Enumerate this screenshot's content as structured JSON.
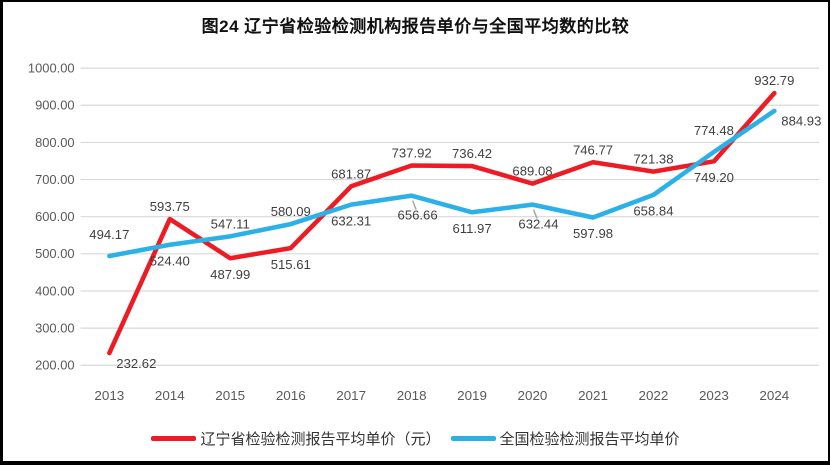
{
  "title": "图24 辽宁省检验检测机构报告单价与全国平均数的比较",
  "chart_data": {
    "type": "line",
    "title": "图24 辽宁省检验检测机构报告单价与全国平均数的比较",
    "categories": [
      "2013",
      "2014",
      "2015",
      "2016",
      "2017",
      "2018",
      "2019",
      "2020",
      "2021",
      "2022",
      "2023",
      "2024"
    ],
    "series": [
      {
        "name": "辽宁省检验检测报告平均单价（元）",
        "color": "#ed1c24",
        "values": [
          232.62,
          593.75,
          487.99,
          515.61,
          681.87,
          737.92,
          736.42,
          689.08,
          746.77,
          721.38,
          749.2,
          932.79
        ],
        "label_positions": [
          "right-below",
          "above",
          "below",
          "below",
          "above",
          "above",
          "above",
          "above",
          "above",
          "above",
          "below",
          "above"
        ]
      },
      {
        "name": "全国检验检测报告平均单价",
        "color": "#2bb1e7",
        "values": [
          494.17,
          524.4,
          547.11,
          580.09,
          632.31,
          656.66,
          611.97,
          632.44,
          597.98,
          658.84,
          774.48,
          884.93
        ],
        "label_positions": [
          "above-far",
          "below",
          "above",
          "above",
          "below",
          "below-leader",
          "below",
          "below-leader",
          "below",
          "below",
          "above-far",
          "right-below"
        ]
      }
    ],
    "ylim": [
      200,
      1000
    ],
    "y_ticks": [
      200,
      300,
      400,
      500,
      600,
      700,
      800,
      900,
      1000
    ],
    "y_tick_labels": [
      "200.00",
      "300.00",
      "400.00",
      "500.00",
      "600.00",
      "700.00",
      "800.00",
      "900.00",
      "1000.00"
    ],
    "grid": "horizontal",
    "gridline_color": "#d9d9d9",
    "axis_text_color": "#595959",
    "data_label_color": "#3f3f3f",
    "leader_color": "#a6a6a6",
    "legend_position": "bottom",
    "value_format": "0.00"
  }
}
